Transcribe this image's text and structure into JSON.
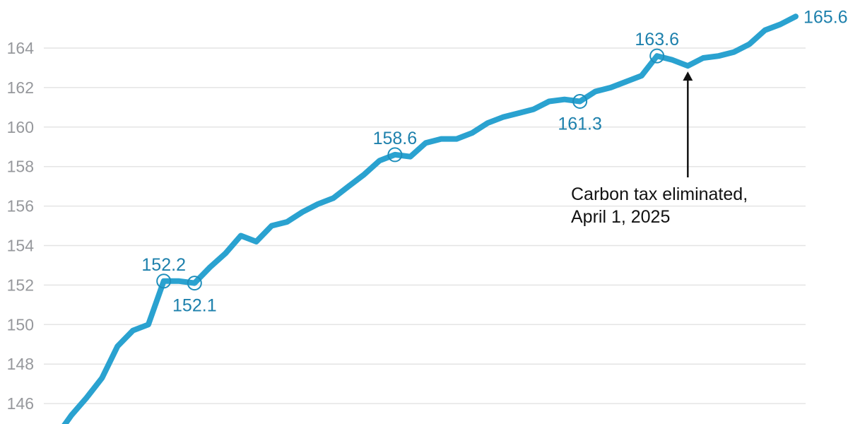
{
  "chart_data": {
    "type": "line",
    "title": "",
    "grid": "horizontal",
    "x_tick_labels_visible": false,
    "y_ticks": [
      146,
      148,
      150,
      152,
      154,
      156,
      158,
      160,
      162,
      164
    ],
    "ylim": [
      145.0,
      166.4
    ],
    "values": [
      144.3,
      145.4,
      146.3,
      147.3,
      148.9,
      149.7,
      150.0,
      152.2,
      152.2,
      152.1,
      152.9,
      153.6,
      154.5,
      154.2,
      155.0,
      155.2,
      155.7,
      156.1,
      156.4,
      157.0,
      157.6,
      158.3,
      158.6,
      158.5,
      159.2,
      159.4,
      159.4,
      159.7,
      160.2,
      160.5,
      160.7,
      160.9,
      161.3,
      161.4,
      161.3,
      161.8,
      162.0,
      162.3,
      162.6,
      163.6,
      163.4,
      163.1,
      163.5,
      163.6,
      163.8,
      164.2,
      164.9,
      165.2,
      165.6
    ],
    "labeled_points": [
      {
        "index": 7,
        "label": "152.2",
        "value": 152.2,
        "position": "above"
      },
      {
        "index": 9,
        "label": "152.1",
        "value": 152.1,
        "position": "below"
      },
      {
        "index": 22,
        "label": "158.6",
        "value": 158.6,
        "position": "above"
      },
      {
        "index": 34,
        "label": "161.3",
        "value": 161.3,
        "position": "below"
      },
      {
        "index": 39,
        "label": "163.6",
        "value": 163.6,
        "position": "above"
      },
      {
        "index": 48,
        "label": "165.6",
        "value": 165.6,
        "position": "right"
      }
    ],
    "annotation": {
      "line1": "Carbon tax eliminated,",
      "line2": "April 1, 2025",
      "arrow_target_index": 41,
      "arrow_target_value": 163.1
    },
    "colors": {
      "line": "#2aa2d0",
      "marker_ring": "#1f8fbc",
      "value_label": "#1d80ac",
      "axis_label": "#96989c",
      "gridline": "#e4e4e4",
      "annotation": "#121212"
    }
  }
}
